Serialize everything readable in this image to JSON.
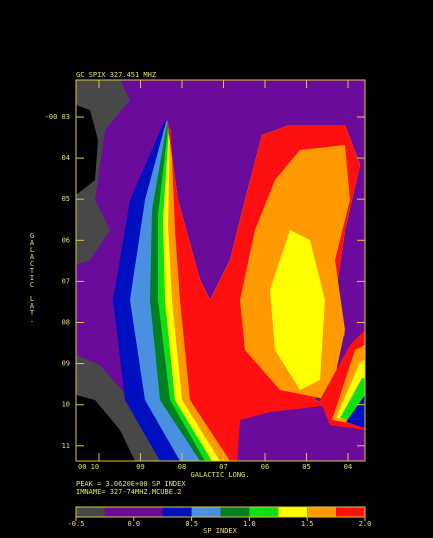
{
  "chart_data": {
    "type": "image",
    "title": "GC SPIX  327.451 MHZ",
    "x_label": "GALACTIC LONG.",
    "y_label": "GALACTIC LAT.",
    "xlabels": [
      "00 10",
      "09",
      "08",
      "07",
      "06",
      "05",
      "04"
    ],
    "ylabels": [
      "-00 03",
      "04",
      "05",
      "06",
      "07",
      "08",
      "09",
      "10",
      "11"
    ],
    "peak_text": "PEAK = 3.0620E+00 SP INDEX",
    "imname_text": "IMNAME= 327-74MHZ.MCUBE.2",
    "colorbar": {
      "label": "SP INDEX",
      "range": [
        -0.5,
        2.0
      ],
      "levels": [
        -0.5,
        -0.25,
        0.25,
        0.5,
        0.75,
        1.0,
        1.25,
        1.5,
        1.75,
        2.0
      ],
      "colors": [
        "#484848",
        "#6b0b9b",
        "#0010c0",
        "#4a90e0",
        "#008020",
        "#10e010",
        "#ffff00",
        "#ff9900",
        "#ff1010"
      ],
      "ticks": [
        -0.5,
        {
          "value": 0.0,
          "label": "0.0"
        },
        0.5,
        {
          "value": 1.0,
          "label": "1.0"
        },
        1.5,
        {
          "value": 2.0,
          "label": "2.0"
        }
      ]
    }
  }
}
